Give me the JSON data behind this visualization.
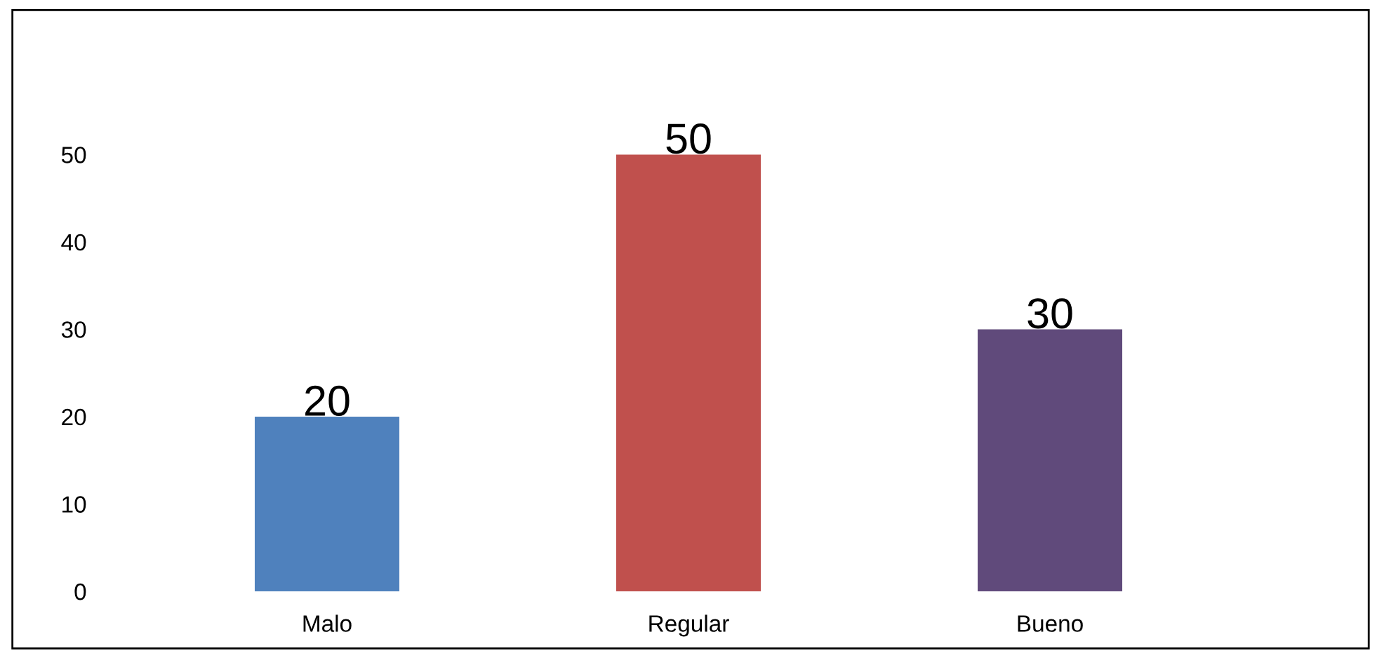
{
  "chart_data": {
    "type": "bar",
    "categories": [
      "Malo",
      "Regular",
      "Bueno"
    ],
    "values": [
      20,
      50,
      30
    ],
    "colors": [
      "#4f81bd",
      "#c0504d",
      "#604a7b"
    ],
    "ylim": [
      0,
      50
    ],
    "yticks": [
      0,
      10,
      20,
      30,
      40,
      50
    ],
    "grid": false,
    "legend": false,
    "data_labels": true
  }
}
